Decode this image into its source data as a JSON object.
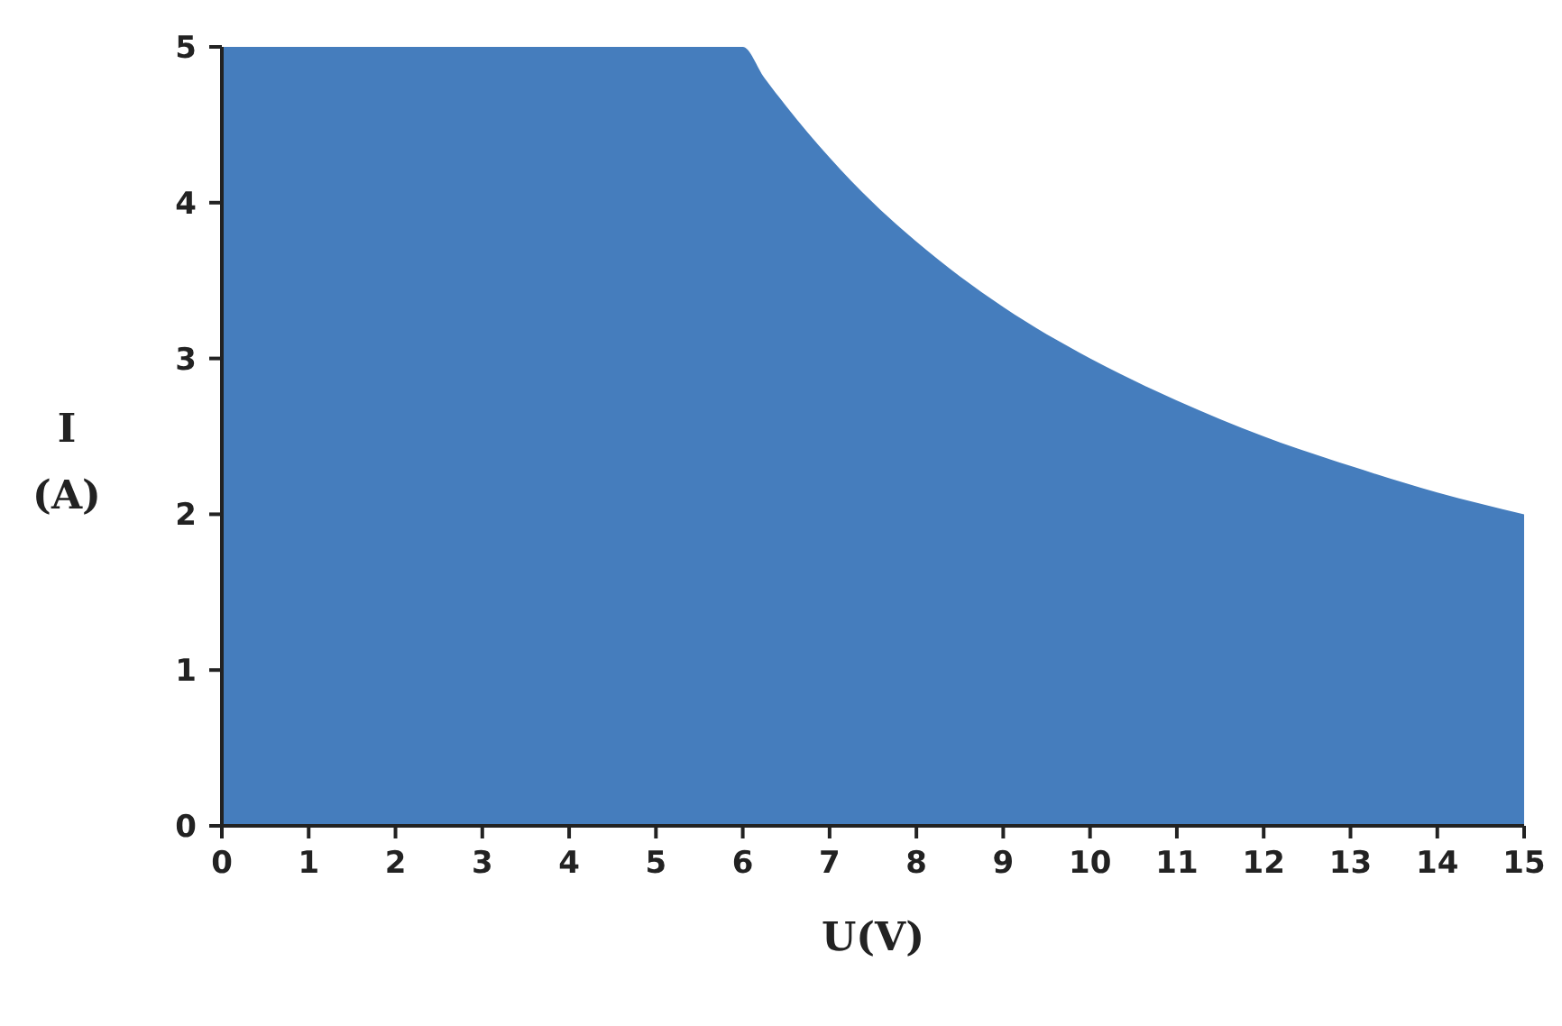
{
  "chart_data": {
    "type": "area",
    "xlabel": "U(V)",
    "ylabel": "I\n(A)",
    "x": [
      0,
      6,
      6.25,
      6.5,
      7,
      7.5,
      8,
      9,
      10,
      11,
      12,
      13,
      14,
      15
    ],
    "series": [
      {
        "color": "#457dbd",
        "values": [
          5,
          5,
          4.8,
          4.62,
          4.29,
          4,
          3.75,
          3.33,
          3,
          2.73,
          2.5,
          2.31,
          2.14,
          2
        ]
      }
    ],
    "xlim": [
      0,
      15
    ],
    "xticks": [
      0,
      1,
      2,
      3,
      4,
      5,
      6,
      7,
      8,
      9,
      10,
      11,
      12,
      13,
      14,
      15
    ],
    "ylim": [
      0,
      5
    ],
    "yticks": [
      0,
      1,
      2,
      3,
      4,
      5
    ],
    "grid": false
  }
}
